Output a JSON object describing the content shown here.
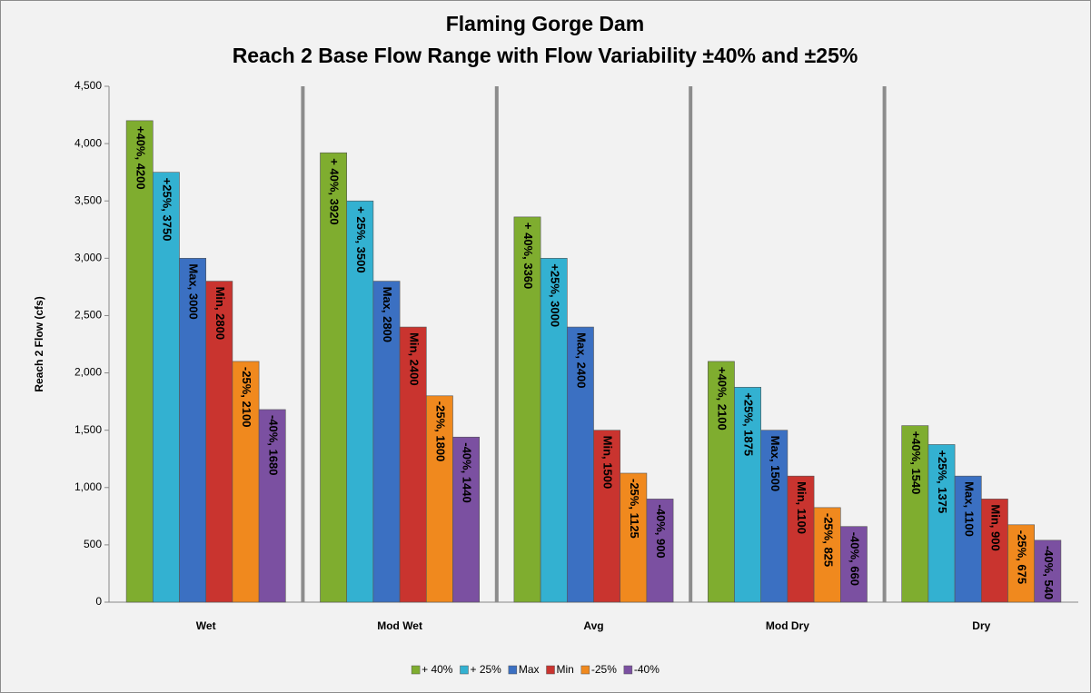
{
  "chart_data": {
    "type": "bar",
    "title": "Flaming Gorge Dam",
    "subtitle": "Reach 2 Base Flow Range with Flow Variability ±40% and ±25%",
    "y_label": "Reach 2 Flow (cfs)",
    "categories": [
      "Wet",
      "Mod Wet",
      "Avg",
      "Mod Dry",
      "Dry"
    ],
    "series": [
      {
        "name": "+ 40%",
        "color": "#7fad2f",
        "values": [
          4200,
          3920,
          3360,
          2100,
          1540
        ],
        "value_labels": [
          "+40%, 4200",
          "+ 40%, 3920",
          "+ 40%, 3360",
          "+40%, 2100",
          "+40%, 1540"
        ]
      },
      {
        "name": "+ 25%",
        "color": "#33b1d1",
        "values": [
          3750,
          3500,
          3000,
          1875,
          1375
        ],
        "value_labels": [
          "+25%, 3750",
          "+ 25%, 3500",
          "+25%, 3000",
          "+25%, 1875",
          "+25%, 1375"
        ]
      },
      {
        "name": "Max",
        "color": "#3b70c2",
        "values": [
          3000,
          2800,
          2400,
          1500,
          1100
        ],
        "value_labels": [
          "Max, 3000",
          "Max, 2800",
          "Max, 2400",
          "Max, 1500",
          "Max, 1100"
        ]
      },
      {
        "name": "Min",
        "color": "#c9342f",
        "values": [
          2800,
          2400,
          1500,
          1100,
          900
        ],
        "value_labels": [
          "Min, 2800",
          "Min, 2400",
          "Min, 1500",
          "Min, 1100",
          "Min, 900"
        ]
      },
      {
        "name": "-25%",
        "color": "#f0891e",
        "values": [
          2100,
          1800,
          1125,
          825,
          675
        ],
        "value_labels": [
          "-25%, 2100",
          "-25%, 1800",
          "-25%, 1125",
          "-25%, 825",
          "-25%, 675"
        ]
      },
      {
        "name": "-40%",
        "color": "#7b50a1",
        "values": [
          1680,
          1440,
          900,
          660,
          540
        ],
        "value_labels": [
          "-40%, 1680",
          "-40%, 1440",
          "-40%, 900",
          "-40%, 660",
          "-40%, 540"
        ]
      }
    ],
    "ylim": [
      0,
      4500
    ],
    "yticks": [
      0,
      500,
      {
        "value": 1000,
        "label": "1,000"
      },
      {
        "value": 1500,
        "label": "1,500"
      },
      {
        "value": 2000,
        "label": "2,000"
      },
      {
        "value": 2500,
        "label": "2,500"
      },
      {
        "value": 3000,
        "label": "3,000"
      },
      {
        "value": 3500,
        "label": "3,500"
      },
      {
        "value": 4000,
        "label": "4,000"
      },
      {
        "value": 4500,
        "label": "4,500"
      }
    ],
    "legend": "bottom"
  }
}
